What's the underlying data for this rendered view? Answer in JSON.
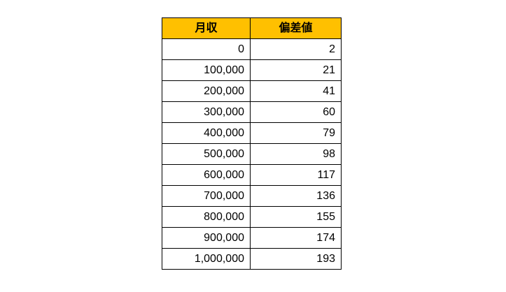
{
  "colors": {
    "header_background": "#FFC000",
    "border": "#000000",
    "text": "#000000",
    "page_background": "#FFFFFF"
  },
  "table": {
    "headers": {
      "income": "月収",
      "deviation": "偏差値"
    },
    "rows": [
      {
        "income": "0",
        "deviation": "2"
      },
      {
        "income": "100,000",
        "deviation": "21"
      },
      {
        "income": "200,000",
        "deviation": "41"
      },
      {
        "income": "300,000",
        "deviation": "60"
      },
      {
        "income": "400,000",
        "deviation": "79"
      },
      {
        "income": "500,000",
        "deviation": "98"
      },
      {
        "income": "600,000",
        "deviation": "117"
      },
      {
        "income": "700,000",
        "deviation": "136"
      },
      {
        "income": "800,000",
        "deviation": "155"
      },
      {
        "income": "900,000",
        "deviation": "174"
      },
      {
        "income": "1,000,000",
        "deviation": "193"
      }
    ]
  },
  "chart_data": {
    "type": "table",
    "title": "",
    "columns": [
      "月収",
      "偏差値"
    ],
    "rows": [
      [
        0,
        2
      ],
      [
        100000,
        21
      ],
      [
        200000,
        41
      ],
      [
        300000,
        60
      ],
      [
        400000,
        79
      ],
      [
        500000,
        98
      ],
      [
        600000,
        117
      ],
      [
        700000,
        136
      ],
      [
        800000,
        155
      ],
      [
        900000,
        174
      ],
      [
        1000000,
        193
      ]
    ],
    "layout_hints": {
      "header_fill": "#FFC000",
      "header_text_bold": true,
      "cell_alignment": "right",
      "header_alignment": "center",
      "grid": "all-borders-black"
    }
  }
}
